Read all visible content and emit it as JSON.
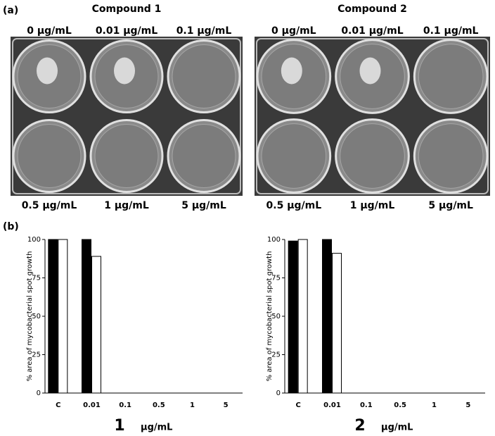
{
  "panel_a": {
    "label": "(a)",
    "plates": [
      {
        "title": "Compound 1",
        "wells": [
          "0 μg/mL",
          "0.01 μg/mL",
          "0.1 μg/mL",
          "0.5 μg/mL",
          "1 μg/mL",
          "5 μg/mL"
        ]
      },
      {
        "title": "Compound 2",
        "wells": [
          "0 μg/mL",
          "0.01 μg/mL",
          "0.1 μg/mL",
          "0.5 μg/mL",
          "1 μg/mL",
          "5 μg/mL"
        ]
      }
    ]
  },
  "panel_b_label": "(b)",
  "chart_data": [
    {
      "type": "bar",
      "ylabel": "% area of mycobacterial spot growth",
      "xlabel": "1",
      "xunit": "μg/mL",
      "categories": [
        "C",
        "0.01",
        "0.1",
        "0.5",
        "1",
        "5"
      ],
      "series": [
        {
          "color": "#000000",
          "values": [
            100,
            100,
            0,
            0,
            0,
            0
          ]
        },
        {
          "color": "#ffffff",
          "values": [
            100,
            89,
            0,
            0,
            0,
            0
          ]
        }
      ],
      "ylim": [
        0,
        100
      ],
      "yticks": [
        0,
        25,
        50,
        75,
        100
      ]
    },
    {
      "type": "bar",
      "ylabel": "% area of mycobacterial spot growth",
      "xlabel": "2",
      "xunit": "μg/mL",
      "categories": [
        "C",
        "0.01",
        "0.1",
        "0.5",
        "1",
        "5"
      ],
      "series": [
        {
          "color": "#000000",
          "values": [
            99,
            100,
            0,
            0,
            0,
            0
          ]
        },
        {
          "color": "#ffffff",
          "values": [
            100,
            91,
            0,
            0,
            0,
            0
          ]
        }
      ],
      "ylim": [
        0,
        100
      ],
      "yticks": [
        0,
        25,
        50,
        75,
        100
      ]
    }
  ]
}
